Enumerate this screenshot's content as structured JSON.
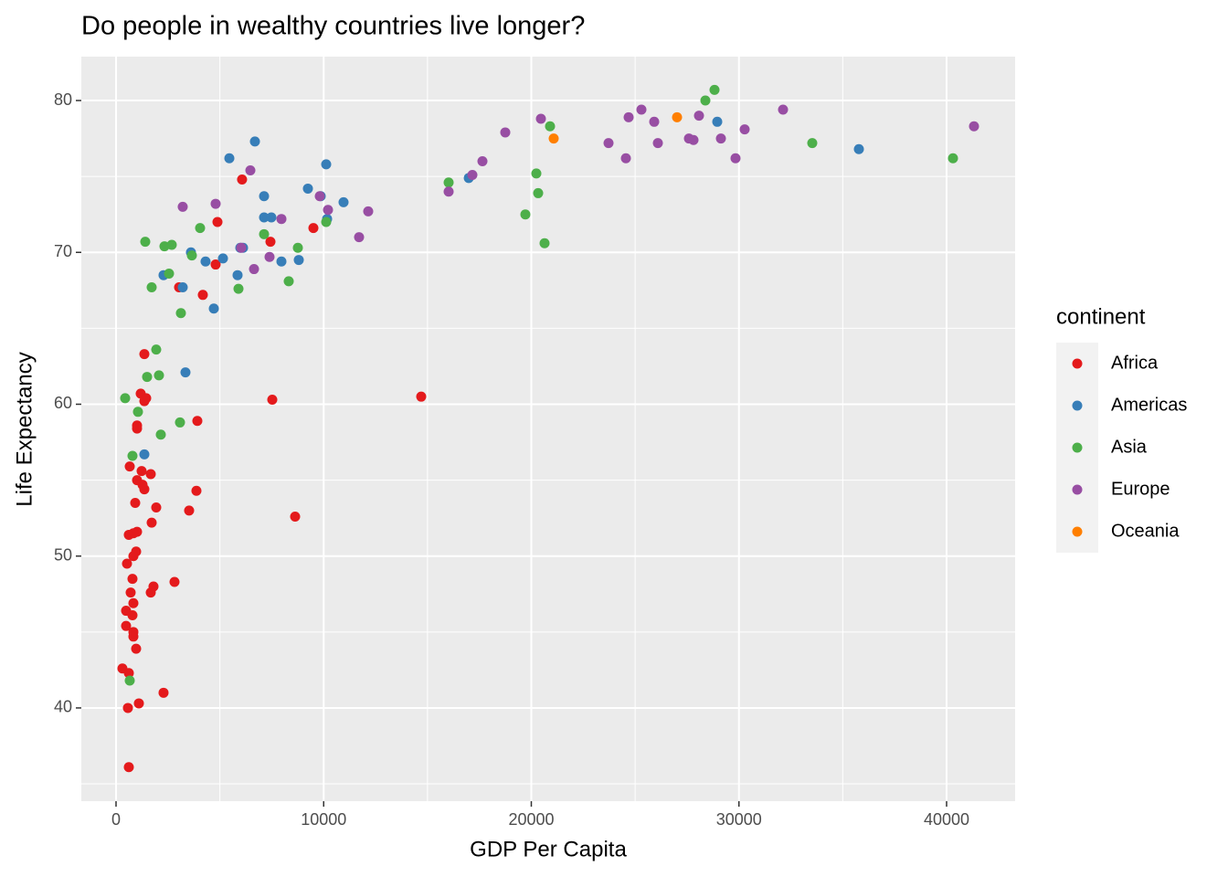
{
  "chart_data": {
    "type": "scatter",
    "title": "Do people in wealthy countries live longer?",
    "x_label": "GDP Per Capita",
    "y_label": "Life Expectancy",
    "legend_title": "continent",
    "xlim": [
      -1672,
      43300
    ],
    "ylim": [
      33.86,
      82.89
    ],
    "xticks": [
      0,
      10000,
      20000,
      30000,
      40000
    ],
    "yticks": [
      40,
      50,
      60,
      70,
      80
    ],
    "grid": true,
    "legend_position": "right",
    "series": [
      {
        "name": "Africa",
        "color": "#e41a1c",
        "x": [
          6070,
          4885,
          4797,
          7437,
          9505,
          4180,
          3036,
          14697,
          7525,
          3916,
          1364,
          1188,
          1452,
          1364,
          1012,
          1012,
          3872,
          3520,
          8625,
          1936,
          1672,
          1232,
          660,
          1012,
          1276,
          1364,
          924,
          1716,
          1012,
          836,
          616,
          968,
          836,
          528,
          792,
          1804,
          2816,
          1672,
          704,
          484,
          836,
          792,
          484,
          836,
          836,
          968,
          308,
          616,
          1100,
          2288,
          572,
          616
        ],
        "values": [
          74.8,
          72.0,
          69.2,
          70.7,
          71.6,
          67.2,
          67.7,
          60.5,
          60.3,
          58.9,
          63.3,
          60.7,
          60.4,
          60.2,
          58.6,
          58.4,
          54.3,
          53.0,
          52.6,
          53.2,
          55.4,
          55.6,
          55.9,
          55.0,
          54.7,
          54.4,
          53.5,
          52.2,
          51.6,
          51.5,
          51.4,
          50.3,
          50.0,
          49.5,
          48.5,
          48.0,
          48.3,
          47.6,
          47.6,
          46.4,
          46.9,
          46.1,
          45.4,
          45.0,
          44.7,
          43.9,
          42.6,
          42.3,
          40.3,
          41.0,
          40.0,
          36.1
        ]
      },
      {
        "name": "Americas",
        "color": "#377eb8",
        "x": [
          6689,
          5457,
          10121,
          7129,
          9241,
          9857,
          10957,
          7129,
          7481,
          10165,
          3608,
          5149,
          4312,
          7965,
          8801,
          5985,
          6117,
          2288,
          5853,
          3212,
          4709,
          3344,
          1364,
          16986,
          28955,
          35776
        ],
        "values": [
          77.3,
          76.2,
          75.8,
          73.7,
          74.2,
          73.7,
          73.3,
          72.3,
          72.3,
          72.2,
          70.0,
          69.6,
          69.4,
          69.4,
          69.5,
          70.3,
          70.3,
          68.5,
          68.5,
          67.7,
          66.3,
          62.1,
          56.7,
          74.9,
          78.6,
          76.8
        ]
      },
      {
        "name": "Asia",
        "color": "#4daf4a",
        "x": [
          1408,
          2332,
          2684,
          4048,
          3652,
          2552,
          1716,
          3124,
          5897,
          7129,
          8757,
          8317,
          10121,
          1936,
          1496,
          2068,
          440,
          1056,
          3080,
          2156,
          792,
          660,
          16018,
          20242,
          20330,
          19714,
          20638,
          20902,
          28383,
          28823,
          33531,
          40308
        ],
        "values": [
          70.7,
          70.4,
          70.5,
          71.6,
          69.8,
          68.6,
          67.7,
          66.0,
          67.6,
          71.2,
          70.3,
          68.1,
          72.0,
          63.6,
          61.8,
          61.9,
          60.4,
          59.5,
          58.8,
          58.0,
          56.6,
          41.8,
          74.6,
          75.2,
          73.9,
          72.5,
          70.6,
          78.3,
          80.0,
          80.7,
          77.2,
          76.2
        ]
      },
      {
        "name": "Europe",
        "color": "#984ea3",
        "x": [
          6469,
          4797,
          3212,
          6029,
          7393,
          7965,
          6645,
          9813,
          10209,
          12145,
          11705,
          16018,
          17162,
          17646,
          18746,
          20462,
          23719,
          24555,
          24687,
          25303,
          25919,
          26095,
          27591,
          27811,
          28075,
          29131,
          29835,
          30275,
          32123,
          41320
        ],
        "values": [
          75.4,
          73.2,
          73.0,
          70.3,
          69.7,
          72.2,
          68.9,
          73.7,
          72.8,
          72.7,
          71.0,
          74.0,
          75.1,
          76.0,
          77.9,
          78.8,
          77.2,
          76.2,
          78.9,
          79.4,
          78.6,
          77.2,
          77.5,
          77.4,
          79.0,
          77.5,
          76.2,
          78.1,
          79.4,
          78.3
        ]
      },
      {
        "name": "Oceania",
        "color": "#ff7f00",
        "x": [
          27019,
          21078
        ],
        "values": [
          78.9,
          77.5
        ]
      }
    ]
  }
}
